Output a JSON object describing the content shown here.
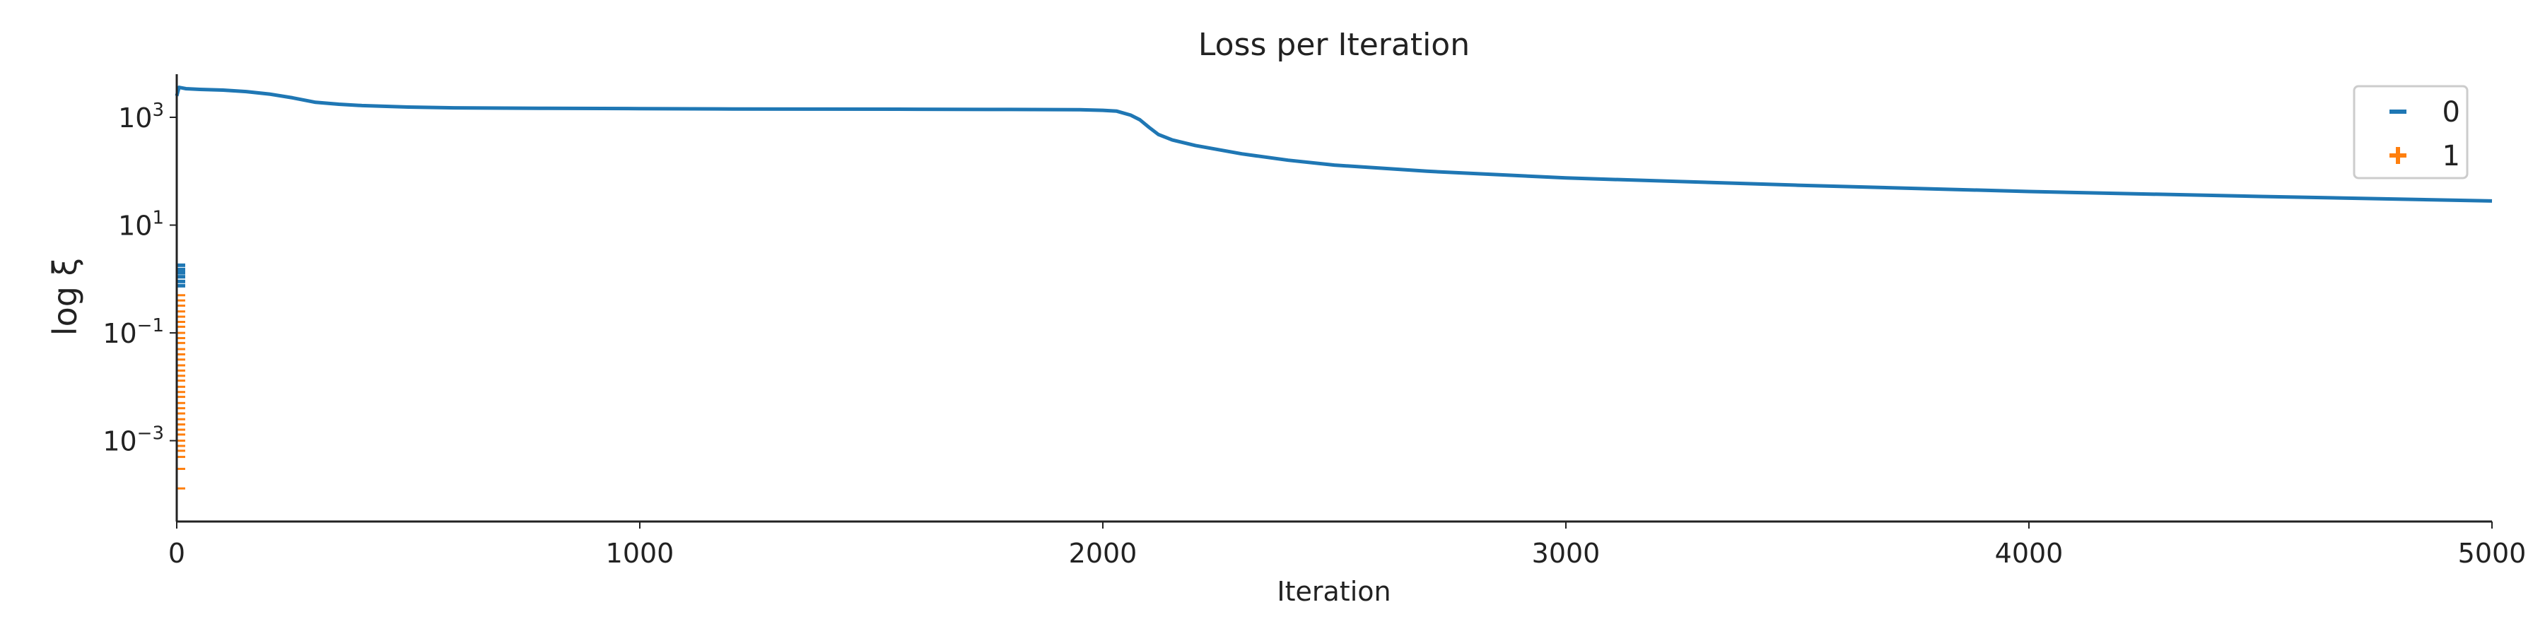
{
  "chart_data": {
    "type": "line",
    "title": "Loss per Iteration",
    "xlabel": "Iteration",
    "ylabel": "log ξ",
    "xlim": [
      0,
      5000
    ],
    "ylim_log10": [
      -4.5,
      3.8
    ],
    "y_scale": "log",
    "grid": false,
    "legend_position": "top-right",
    "x_ticks": [
      0,
      1000,
      2000,
      3000,
      4000,
      5000
    ],
    "y_ticks": [
      {
        "base": "10",
        "exp": "3",
        "value": 1000
      },
      {
        "base": "10",
        "exp": "1",
        "value": 10
      },
      {
        "base": "10",
        "exp": "−1",
        "value": 0.1
      },
      {
        "base": "10",
        "exp": "−3",
        "value": 0.001
      }
    ],
    "series": [
      {
        "name": "0",
        "color": "#1f77b4",
        "marker": "minus",
        "x": [
          0,
          5,
          20,
          50,
          100,
          150,
          200,
          250,
          300,
          350,
          400,
          500,
          600,
          800,
          1000,
          1200,
          1400,
          1600,
          1800,
          1950,
          2000,
          2030,
          2060,
          2080,
          2100,
          2120,
          2150,
          2200,
          2300,
          2400,
          2500,
          2700,
          3000,
          3500,
          4000,
          4500,
          5000
        ],
        "y": [
          2500,
          3600,
          3400,
          3300,
          3200,
          3000,
          2700,
          2300,
          1900,
          1750,
          1650,
          1550,
          1500,
          1470,
          1450,
          1430,
          1420,
          1410,
          1400,
          1380,
          1350,
          1300,
          1100,
          900,
          650,
          480,
          380,
          300,
          210,
          160,
          130,
          100,
          75,
          55,
          42,
          34,
          28
        ]
      },
      {
        "name": "1",
        "color": "#ff7f0e",
        "marker": "plus",
        "x": [
          0
        ],
        "y": [
          0.1
        ]
      }
    ],
    "scatter_blue": [
      1.8,
      1.5,
      1.3,
      1.1,
      0.9,
      0.75
    ],
    "scatter_orange": [
      0.5,
      0.4,
      0.32,
      0.25,
      0.2,
      0.16,
      0.13,
      0.1,
      0.08,
      0.065,
      0.05,
      0.04,
      0.032,
      0.025,
      0.02,
      0.016,
      0.013,
      0.01,
      0.008,
      0.0065,
      0.005,
      0.004,
      0.0032,
      0.0025,
      0.002,
      0.0016,
      0.0013,
      0.001,
      0.0008,
      0.00065,
      0.0005,
      0.0003,
      0.00013
    ]
  }
}
